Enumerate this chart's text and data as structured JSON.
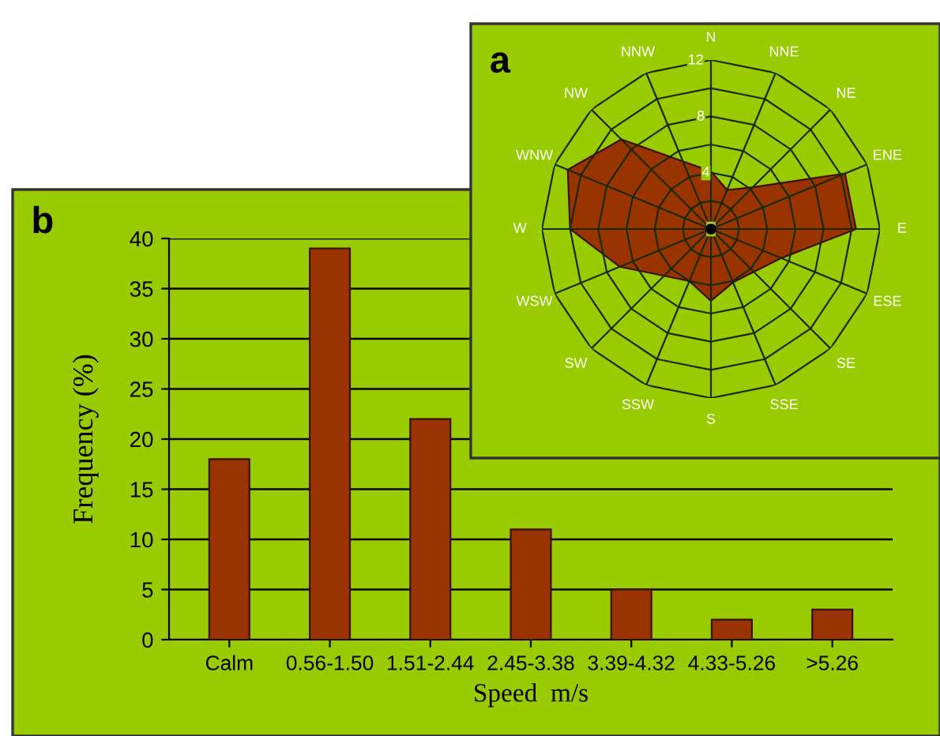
{
  "chart_data": [
    {
      "type": "radar",
      "title": "a",
      "categories": [
        "N",
        "NNE",
        "NE",
        "ENE",
        "E",
        "ESE",
        "SE",
        "SSE",
        "S",
        "SSW",
        "SW",
        "WSW",
        "W",
        "WNW",
        "NW",
        "NNW"
      ],
      "series": [
        {
          "color": "#993300",
          "values": [
            4.1,
            3.0,
            4.2,
            10.3,
            10.3,
            5.4,
            4.3,
            4.1,
            5.1,
            4.0,
            4.7,
            7.0,
            10.0,
            11.0,
            9.0,
            5.2
          ]
        }
      ],
      "ylim": [
        0,
        12
      ],
      "yticks": [
        0,
        4,
        8,
        12
      ],
      "grid": true
    },
    {
      "type": "bar",
      "title": "b",
      "categories": [
        "Calm",
        "0.56-1.50",
        "1.51-2.44",
        "2.45-3.38",
        "3.39-4.32",
        "4.33-5.26",
        ">5.26"
      ],
      "values": [
        18,
        39,
        22,
        11,
        5,
        2,
        3
      ],
      "color": "#993300",
      "ylim": [
        0,
        40
      ],
      "yticks": [
        0,
        5,
        10,
        15,
        20,
        25,
        30,
        35,
        40
      ],
      "grid": "y",
      "xlabel": "Speed  m/s",
      "ylabel": "Frequency (%)"
    }
  ]
}
